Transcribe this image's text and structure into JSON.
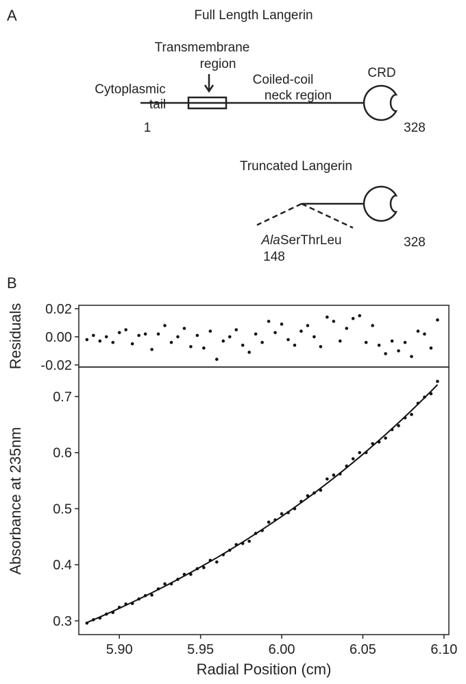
{
  "diagram": {
    "panel_a": "A",
    "full_title": "Full Length Langerin",
    "transmembrane": [
      "Transmembrane",
      "region"
    ],
    "cytoplasmic": [
      "Cytoplasmic",
      "tail"
    ],
    "neck": [
      "Coiled-coil",
      "neck region"
    ],
    "crd": "CRD",
    "start": "1",
    "end": "328",
    "truncated_title": "Truncated Langerin",
    "tag_italic": "Ala",
    "tag_rest": "SerThrLeu",
    "truncated_start": "148",
    "truncated_end": "328",
    "panel_b": "B"
  },
  "chart_data": [
    {
      "type": "scatter",
      "ylabel": "Residuals",
      "color": "#111111",
      "xlim": [
        5.875,
        6.103
      ],
      "ylim": [
        -0.0215,
        0.0224
      ],
      "yticks": [
        0.02,
        {
          "value": 0,
          "label": "0.00"
        },
        -0.02
      ],
      "x": [
        5.88,
        5.884,
        5.888,
        5.892,
        5.896,
        5.9,
        5.904,
        5.908,
        5.912,
        5.916,
        5.92,
        5.924,
        5.928,
        5.932,
        5.936,
        5.94,
        5.944,
        5.948,
        5.952,
        5.956,
        5.96,
        5.964,
        5.968,
        5.972,
        5.976,
        5.98,
        5.984,
        5.988,
        5.992,
        5.996,
        6.0,
        6.004,
        6.008,
        6.012,
        6.016,
        6.02,
        6.024,
        6.028,
        6.032,
        6.036,
        6.04,
        6.044,
        6.048,
        6.052,
        6.056,
        6.06,
        6.064,
        6.068,
        6.072,
        6.076,
        6.08,
        6.084,
        6.088,
        6.092,
        6.096
      ],
      "values": [
        -0.002,
        0.001,
        -0.003,
        0.0,
        -0.004,
        0.003,
        0.005,
        -0.005,
        0.001,
        0.002,
        -0.009,
        0.002,
        0.008,
        -0.004,
        0.0,
        0.006,
        -0.007,
        0.001,
        -0.008,
        0.004,
        -0.016,
        -0.003,
        0.0,
        0.005,
        -0.006,
        -0.011,
        0.002,
        -0.004,
        0.011,
        0.003,
        0.009,
        -0.002,
        -0.006,
        0.004,
        0.008,
        0.0,
        -0.007,
        0.014,
        0.011,
        -0.003,
        0.006,
        0.013,
        0.015,
        -0.004,
        0.008,
        -0.006,
        -0.012,
        -0.003,
        -0.01,
        -0.004,
        -0.014,
        0.004,
        0.002,
        -0.008,
        0.012
      ]
    },
    {
      "type": "scatter",
      "ylabel": "Absorbance at 235nm",
      "xlabel": "Radial Position (cm)",
      "color": "#111111",
      "xlim": [
        5.875,
        6.103
      ],
      "ylim": [
        0.2755,
        0.7526
      ],
      "xticks": [
        {
          "value": 5.9,
          "label": "5.90"
        },
        {
          "value": 5.95,
          "label": "5.95"
        },
        {
          "value": 6.0,
          "label": "6.00"
        },
        {
          "value": 6.05,
          "label": "6.05"
        },
        {
          "value": 6.1,
          "label": "6.10"
        }
      ],
      "yticks": [
        0.3,
        0.4,
        0.5,
        0.6,
        0.7
      ],
      "x": [
        5.88,
        5.884,
        5.888,
        5.892,
        5.896,
        5.9,
        5.904,
        5.908,
        5.912,
        5.916,
        5.92,
        5.924,
        5.928,
        5.932,
        5.936,
        5.94,
        5.944,
        5.948,
        5.952,
        5.956,
        5.96,
        5.964,
        5.968,
        5.972,
        5.976,
        5.98,
        5.984,
        5.988,
        5.992,
        5.996,
        6.0,
        6.004,
        6.008,
        6.012,
        6.016,
        6.02,
        6.024,
        6.028,
        6.032,
        6.036,
        6.04,
        6.044,
        6.048,
        6.052,
        6.056,
        6.06,
        6.064,
        6.068,
        6.072,
        6.076,
        6.08,
        6.084,
        6.088,
        6.092,
        6.096
      ],
      "values": [
        0.296,
        0.302,
        0.305,
        0.312,
        0.315,
        0.324,
        0.33,
        0.331,
        0.339,
        0.345,
        0.346,
        0.357,
        0.366,
        0.366,
        0.374,
        0.383,
        0.383,
        0.393,
        0.395,
        0.408,
        0.405,
        0.418,
        0.426,
        0.436,
        0.438,
        0.442,
        0.456,
        0.461,
        0.476,
        0.48,
        0.491,
        0.493,
        0.5,
        0.513,
        0.523,
        0.528,
        0.533,
        0.553,
        0.56,
        0.562,
        0.576,
        0.589,
        0.6,
        0.6,
        0.616,
        0.619,
        0.626,
        0.641,
        0.648,
        0.662,
        0.668,
        0.688,
        0.699,
        0.705,
        0.727
      ],
      "fit": [
        0.297,
        0.3019,
        0.3069,
        0.312,
        0.3172,
        0.3225,
        0.3278,
        0.3333,
        0.3388,
        0.3444,
        0.3501,
        0.3559,
        0.3618,
        0.3678,
        0.3739,
        0.3801,
        0.3864,
        0.3928,
        0.3993,
        0.4059,
        0.4126,
        0.4194,
        0.4264,
        0.4334,
        0.4406,
        0.4479,
        0.4553,
        0.4629,
        0.4705,
        0.4783,
        0.4862,
        0.4943,
        0.5025,
        0.5108,
        0.5192,
        0.5278,
        0.5366,
        0.5455,
        0.5545,
        0.5637,
        0.573,
        0.5825,
        0.5921,
        0.6019,
        0.6119,
        0.622,
        0.6323,
        0.6428,
        0.6534,
        0.6642,
        0.6752,
        0.6864,
        0.6978,
        0.7093,
        0.7211
      ]
    }
  ]
}
